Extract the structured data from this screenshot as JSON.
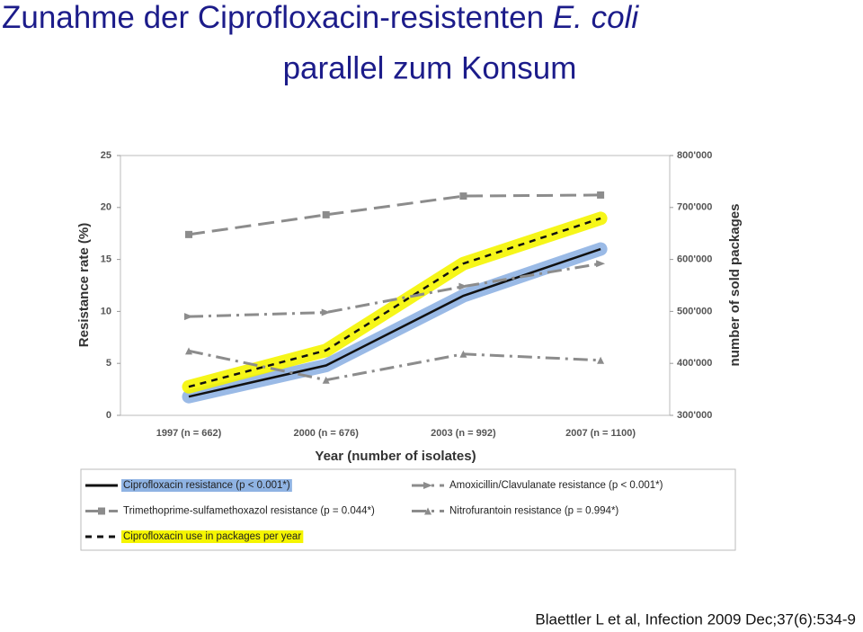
{
  "slide": {
    "title_start": "Zunahme der Ciprofloxacin-resistenten",
    "title_italic": "E. coli",
    "title_line2": "parallel zum Konsum",
    "citation": "Blaettler L et al, Infection 2009 Dec;37(6):534-9"
  },
  "chart_data": {
    "type": "line",
    "xlabel": "Year (number of isolates)",
    "ylabel": "Resistance rate (%)",
    "y2label": "number of sold packages",
    "categories": [
      "1997 (n = 662)",
      "2000 (n = 676)",
      "2003 (n = 992)",
      "2007 (n = 1100)"
    ],
    "ylim": [
      0,
      25
    ],
    "yticks": [
      0,
      5,
      10,
      15,
      20,
      25
    ],
    "y2lim": [
      300000,
      800000
    ],
    "y2ticks": [
      {
        "value": 300000,
        "label": "300'000"
      },
      {
        "value": 400000,
        "label": "400'000"
      },
      {
        "value": 500000,
        "label": "500'000"
      },
      {
        "value": 600000,
        "label": "600'000"
      },
      {
        "value": 700000,
        "label": "700'000"
      },
      {
        "value": 800000,
        "label": "800'000"
      }
    ],
    "series": [
      {
        "name": "Ciprofloxacin resistance (p < 0.001*)",
        "color": "#111111",
        "band": "#8fb3e3",
        "dash": "solid",
        "marker": "none",
        "values": [
          1.8,
          4.8,
          11.5,
          16
        ]
      },
      {
        "name": "Trimethoprime-sulfamethoxazol resistance (p = 0.044*)",
        "color": "#8c8c8c",
        "dash": "dash",
        "marker": "square",
        "values": [
          17.4,
          19.3,
          21.1,
          21.2
        ]
      },
      {
        "name": "Ciprofloxacin use in packages per year",
        "color": "#111111",
        "band": "#f5f500",
        "dash": "shortdash",
        "marker": "none",
        "axis": "y2",
        "values": [
          355000,
          425000,
          592000,
          679000
        ]
      },
      {
        "name": "Amoxicillin/Clavulanate resistance (p < 0.001*)",
        "color": "#8c8c8c",
        "dash": "dashdot",
        "marker": "arrow",
        "values": [
          9.5,
          9.9,
          12.4,
          14.6
        ]
      },
      {
        "name": "Nitrofurantoin resistance (p = 0.994*)",
        "color": "#8c8c8c",
        "dash": "dashdot",
        "marker": "triangle",
        "values": [
          6.2,
          3.4,
          5.9,
          5.3
        ]
      }
    ]
  }
}
